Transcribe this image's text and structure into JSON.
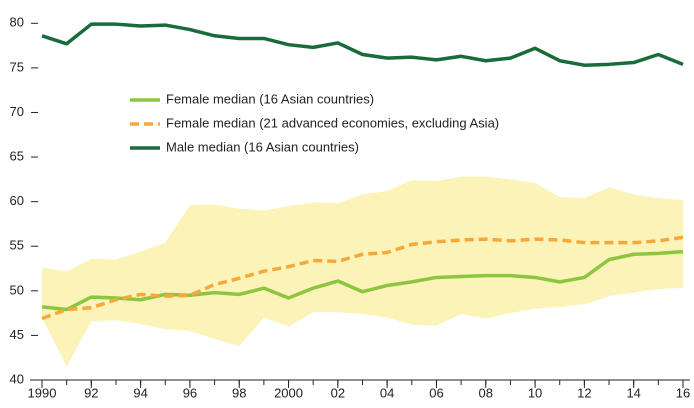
{
  "chart_data": {
    "type": "line",
    "x": [
      1990,
      1991,
      1992,
      1993,
      1994,
      1995,
      1996,
      1997,
      1998,
      1999,
      2000,
      2001,
      2002,
      2003,
      2004,
      2005,
      2006,
      2007,
      2008,
      2009,
      2010,
      2011,
      2012,
      2013,
      2014,
      2015,
      2016
    ],
    "series": [
      {
        "name": "Female median (16 Asian countries)",
        "color": "#8cc63f",
        "dash": false,
        "values": [
          48.2,
          47.9,
          49.3,
          49.2,
          49.0,
          49.6,
          49.5,
          49.8,
          49.6,
          50.3,
          49.2,
          50.3,
          51.1,
          49.9,
          50.6,
          51.0,
          51.5,
          51.6,
          51.7,
          51.7,
          51.5,
          51.0,
          51.5,
          53.5,
          54.1,
          54.2,
          54.4
        ]
      },
      {
        "name": "Female median (21 advanced economies, excluding Asia)",
        "color": "#f7a83b",
        "dash": true,
        "values": [
          46.9,
          47.9,
          48.1,
          49.0,
          49.6,
          49.4,
          49.5,
          50.7,
          51.4,
          52.2,
          52.7,
          53.4,
          53.3,
          54.1,
          54.3,
          55.2,
          55.5,
          55.7,
          55.8,
          55.6,
          55.8,
          55.7,
          55.4,
          55.4,
          55.4,
          55.6,
          56.0
        ]
      },
      {
        "name": "Male median (16 Asian countries)",
        "color": "#1a6b3a",
        "dash": false,
        "values": [
          78.6,
          77.7,
          79.9,
          79.9,
          79.7,
          79.8,
          79.3,
          78.6,
          78.3,
          78.3,
          77.6,
          77.3,
          77.8,
          76.5,
          76.1,
          76.2,
          75.9,
          76.3,
          75.8,
          76.1,
          77.2,
          75.8,
          75.3,
          75.4,
          75.6,
          76.5,
          75.4
        ]
      }
    ],
    "band": {
      "color": "#fbf3b7",
      "upper": [
        52.6,
        52.2,
        53.6,
        53.5,
        54.4,
        55.4,
        59.6,
        59.7,
        59.2,
        59.0,
        59.5,
        59.9,
        59.8,
        60.8,
        61.2,
        62.4,
        62.3,
        62.8,
        62.8,
        62.5,
        62.1,
        60.5,
        60.4,
        61.6,
        60.8,
        60.4,
        60.2
      ],
      "lower": [
        47.0,
        41.5,
        46.6,
        46.7,
        46.3,
        45.7,
        45.5,
        44.6,
        43.8,
        47.0,
        46.0,
        47.6,
        47.6,
        47.4,
        47.0,
        46.2,
        46.1,
        47.4,
        46.9,
        47.5,
        48.0,
        48.2,
        48.5,
        49.4,
        49.8,
        50.2,
        50.3
      ]
    },
    "xlim": [
      1990,
      2016
    ],
    "xticks": [
      1990,
      {
        "value": 1992,
        "label": "92"
      },
      {
        "value": 1994,
        "label": "94"
      },
      {
        "value": 1996,
        "label": "96"
      },
      {
        "value": 1998,
        "label": "98"
      },
      2000,
      {
        "value": 2002,
        "label": "02"
      },
      {
        "value": 2004,
        "label": "04"
      },
      {
        "value": 2006,
        "label": "06"
      },
      {
        "value": 2008,
        "label": "08"
      },
      {
        "value": 2010,
        "label": "10"
      },
      {
        "value": 2012,
        "label": "12"
      },
      {
        "value": 2014,
        "label": "14"
      },
      {
        "value": 2016,
        "label": "16"
      }
    ],
    "ylim": [
      40,
      82.5
    ],
    "yticks": [
      40,
      45,
      50,
      55,
      60,
      65,
      70,
      75,
      80
    ],
    "legend": "upper left"
  }
}
